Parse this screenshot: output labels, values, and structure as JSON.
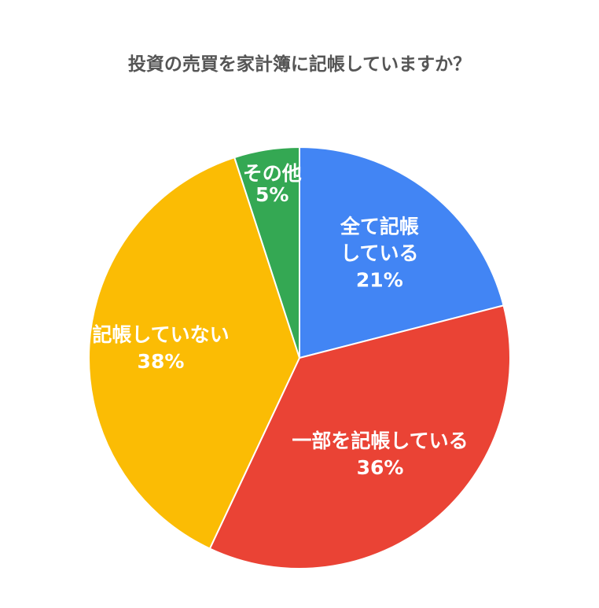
{
  "chart_data": {
    "type": "pie",
    "title": "投資の売買を家計簿に記帳していますか？",
    "slices": [
      {
        "label_lines": [
          "全て記帳",
          "している"
        ],
        "value_label": "21%",
        "value": 21,
        "color": "#4285f4"
      },
      {
        "label_lines": [
          "一部を記帳している"
        ],
        "value_label": "36%",
        "value": 36,
        "color": "#ea4335"
      },
      {
        "label_lines": [
          "記帳していない"
        ],
        "value_label": "38%",
        "value": 38,
        "color": "#fbbc04"
      },
      {
        "label_lines": [
          "その他"
        ],
        "value_label": "5%",
        "value": 5,
        "color": "#34a853"
      }
    ]
  }
}
